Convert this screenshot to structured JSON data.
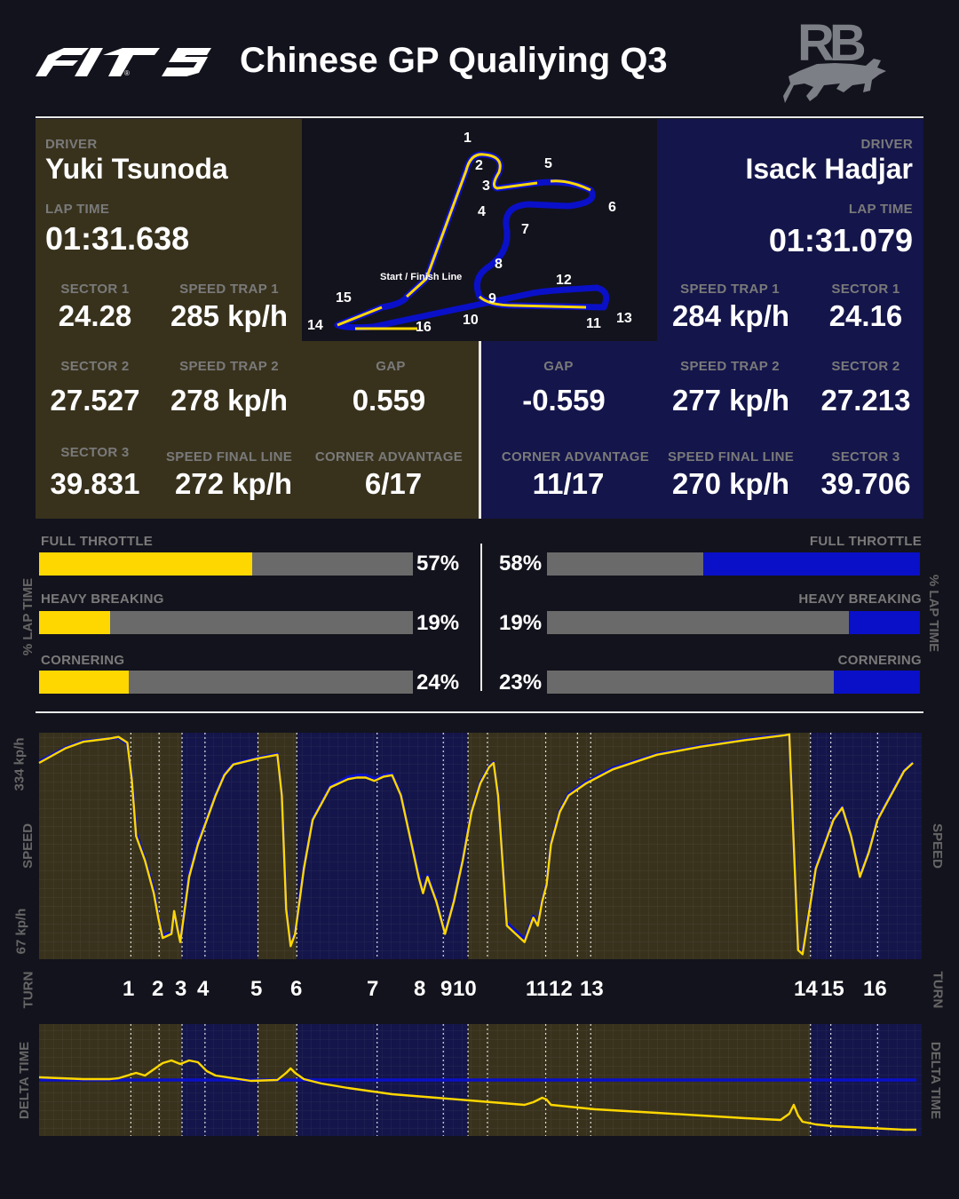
{
  "header": {
    "title": "Chinese GP Qualiying Q3",
    "f1_logo": "F1 75",
    "team_logo": "RB"
  },
  "colors": {
    "driver1": "#ffd700",
    "driver2": "#0a10c8",
    "panel1": "#38321d",
    "panel2": "#14154a",
    "background": "#13131d"
  },
  "driver1": {
    "driver_label": "DRIVER",
    "name": "Yuki Tsunoda",
    "laptime_label": "LAP TIME",
    "laptime": "01:31.638",
    "sector1_label": "SECTOR 1",
    "sector1": "24.28",
    "trap1_label": "SPEED TRAP 1",
    "trap1": "285 kp/h",
    "sector2_label": "SECTOR 2",
    "sector2": "27.527",
    "trap2_label": "SPEED TRAP 2",
    "trap2": "278 kp/h",
    "gap_label": "GAP",
    "gap": "0.559",
    "sector3_label": "SECTOR 3",
    "sector3": "39.831",
    "final_label": "SPEED FINAL LINE",
    "final": "272 kp/h",
    "corner_label": "CORNER ADVANTAGE",
    "corner": "6/17",
    "full_throttle_label": "FULL THROTTLE",
    "full_throttle": 57,
    "full_throttle_text": "57%",
    "heavy_braking_label": "HEAVY BREAKING",
    "heavy_braking": 19,
    "heavy_braking_text": "19%",
    "cornering_label": "CORNERING",
    "cornering": 24,
    "cornering_text": "24%"
  },
  "driver2": {
    "driver_label": "DRIVER",
    "name": "Isack Hadjar",
    "laptime_label": "LAP TIME",
    "laptime": "01:31.079",
    "trap1_label": "SPEED TRAP 1",
    "trap1": "284 kp/h",
    "sector1_label": "SECTOR 1",
    "sector1": "24.16",
    "gap_label": "GAP",
    "gap": "-0.559",
    "trap2_label": "SPEED TRAP 2",
    "trap2": "277 kp/h",
    "sector2_label": "SECTOR 2",
    "sector2": "27.213",
    "corner_label": "CORNER ADVANTAGE",
    "corner": "11/17",
    "final_label": "SPEED FINAL LINE",
    "final": "270 kp/h",
    "sector3_label": "SECTOR 3",
    "sector3": "39.706",
    "full_throttle_label": "FULL THROTTLE",
    "full_throttle": 58,
    "full_throttle_text": "58%",
    "heavy_braking_label": "HEAVY BREAKING",
    "heavy_braking": 19,
    "heavy_braking_text": "19%",
    "cornering_label": "CORNERING",
    "cornering": 23,
    "cornering_text": "23%"
  },
  "track_map": {
    "start_finish_label": "Start / Finish Line",
    "turn_labels": [
      "1",
      "2",
      "3",
      "4",
      "5",
      "6",
      "7",
      "8",
      "9",
      "10",
      "11",
      "12",
      "13",
      "14",
      "15",
      "16"
    ]
  },
  "side_labels": {
    "lap_time": "% LAP TIME",
    "speed": "SPEED",
    "turn": "TURN",
    "delta": "DELTA TIME"
  },
  "chart_data": [
    {
      "type": "line",
      "title": "",
      "ylabel": "SPEED",
      "tick_labels": [
        "334 kp/h",
        "67 kp/h"
      ],
      "ylim": [
        67,
        334
      ],
      "xlim": [
        0,
        100
      ],
      "series": [
        {
          "name": "",
          "x": [
            0,
            3,
            5,
            8,
            9,
            10,
            10.5,
            11,
            12,
            13,
            13.5,
            14,
            15,
            15.3,
            15.7,
            16,
            16.5,
            17,
            18,
            19,
            20,
            21,
            22,
            25,
            27,
            27.5,
            28,
            28.5,
            29,
            30,
            31,
            33,
            35,
            36,
            37,
            38,
            39,
            40,
            41,
            42,
            43,
            43.5,
            44,
            44.5,
            45,
            46,
            47,
            48,
            49,
            50,
            51,
            51.5,
            52,
            53,
            55,
            56,
            56.5,
            57,
            57.5,
            58,
            59,
            60,
            62,
            65,
            70,
            75,
            80,
            83,
            84.5,
            85,
            85.5,
            86,
            86.5,
            87,
            88,
            89,
            90,
            91,
            92,
            93,
            94,
            95,
            96,
            97,
            98,
            99
          ],
          "y": [
            300,
            318,
            326,
            330,
            332,
            325,
            280,
            210,
            180,
            140,
            110,
            85,
            90,
            118,
            95,
            80,
            120,
            160,
            200,
            230,
            260,
            285,
            298,
            306,
            310,
            260,
            120,
            75,
            90,
            170,
            230,
            270,
            280,
            282,
            282,
            278,
            283,
            285,
            260,
            210,
            160,
            140,
            160,
            145,
            130,
            90,
            130,
            180,
            240,
            275,
            295,
            300,
            260,
            100,
            80,
            110,
            100,
            130,
            150,
            200,
            240,
            260,
            275,
            292,
            310,
            320,
            328,
            332,
            334,
            335,
            200,
            70,
            65,
            100,
            170,
            200,
            230,
            245,
            210,
            160,
            190,
            230,
            250,
            270,
            290,
            300
          ],
          "color": "#ffd700"
        },
        {
          "name": "",
          "x": [
            0,
            3,
            5,
            8,
            9,
            10,
            10.5,
            11,
            12,
            13,
            13.5,
            14,
            15,
            15.3,
            15.7,
            16,
            16.5,
            17,
            18,
            19,
            20,
            21,
            22,
            25,
            27,
            27.5,
            28,
            28.5,
            29,
            30,
            31,
            33,
            35,
            36,
            37,
            38,
            39,
            40,
            41,
            42,
            43,
            43.5,
            44,
            44.5,
            45,
            46,
            47,
            48,
            49,
            50,
            51,
            51.5,
            52,
            53,
            55,
            56,
            56.5,
            57,
            57.5,
            58,
            59,
            60,
            62,
            65,
            70,
            75,
            80,
            83,
            84.5,
            85,
            85.5,
            86,
            86.5,
            87,
            88,
            89,
            90,
            91,
            92,
            93,
            94,
            95,
            96,
            97,
            98,
            99
          ],
          "y": [
            302,
            319,
            327,
            330,
            331,
            323,
            285,
            215,
            182,
            145,
            112,
            88,
            92,
            116,
            97,
            82,
            122,
            165,
            205,
            232,
            262,
            287,
            299,
            307,
            311,
            262,
            125,
            78,
            92,
            172,
            232,
            272,
            283,
            285,
            285,
            281,
            285,
            287,
            262,
            212,
            165,
            142,
            162,
            148,
            132,
            92,
            132,
            182,
            242,
            277,
            296,
            301,
            262,
            104,
            84,
            112,
            103,
            132,
            152,
            202,
            242,
            262,
            277,
            294,
            311,
            321,
            329,
            333,
            334,
            334,
            205,
            72,
            68,
            103,
            172,
            202,
            232,
            246,
            212,
            162,
            192,
            232,
            252,
            272,
            291,
            301
          ],
          "color": "#0a10c8"
        }
      ]
    },
    {
      "type": "line",
      "title": "",
      "ylabel": "DELTA TIME",
      "xlim": [
        0,
        100
      ],
      "series": [
        {
          "name": "",
          "x": [
            0,
            5,
            8,
            9,
            10,
            11,
            12,
            13,
            14,
            15,
            16,
            17,
            18,
            19,
            20,
            24,
            27,
            28,
            28.5,
            29,
            30,
            32,
            35,
            40,
            45,
            50,
            55,
            56,
            57,
            57.5,
            58,
            59,
            60,
            63,
            70,
            75,
            80,
            84,
            85,
            85.5,
            86,
            86.5,
            87,
            88,
            90,
            92,
            94,
            96,
            98,
            100
          ],
          "y": [
            0.03,
            0.01,
            0.01,
            0.02,
            0.05,
            0.08,
            0.05,
            0.12,
            0.19,
            0.22,
            0.18,
            0.22,
            0.2,
            0.1,
            0.05,
            -0.01,
            0.0,
            0.08,
            0.13,
            0.08,
            0.01,
            -0.04,
            -0.09,
            -0.16,
            -0.2,
            -0.24,
            -0.28,
            -0.25,
            -0.2,
            -0.22,
            -0.28,
            -0.29,
            -0.3,
            -0.33,
            -0.37,
            -0.4,
            -0.43,
            -0.45,
            -0.38,
            -0.28,
            -0.4,
            -0.47,
            -0.48,
            -0.5,
            -0.52,
            -0.53,
            -0.54,
            -0.55,
            -0.56,
            -0.56
          ],
          "color": "#ffd700"
        },
        {
          "name": "",
          "x": [
            0,
            100
          ],
          "y": [
            0,
            0
          ],
          "color": "#0a10c8"
        }
      ]
    }
  ]
}
